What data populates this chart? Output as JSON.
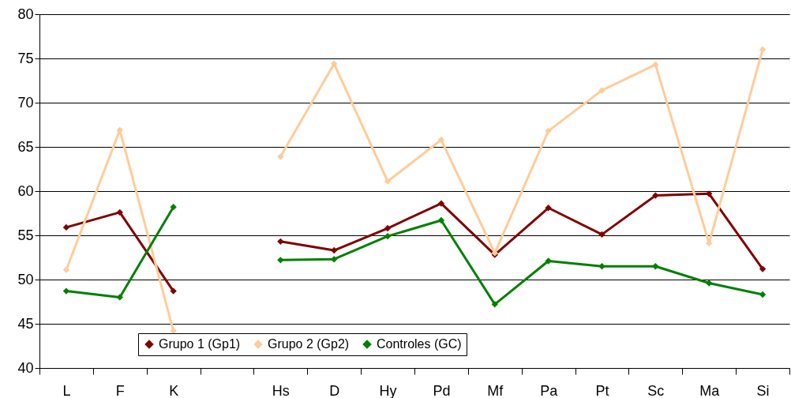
{
  "chart_data": {
    "type": "line",
    "categories": [
      "L",
      "F",
      "K",
      null,
      "Hs",
      "D",
      "Hy",
      "Pd",
      "Mf",
      "Pa",
      "Pt",
      "Sc",
      "Ma",
      "Si"
    ],
    "series": [
      {
        "name": "Grupo 1 (Gp1)",
        "color": "#800000",
        "values": [
          55.9,
          57.6,
          48.7,
          null,
          54.3,
          53.3,
          55.8,
          58.6,
          52.8,
          58.1,
          55.1,
          59.5,
          59.7,
          51.2
        ]
      },
      {
        "name": "Grupo 2 (Gp2)",
        "color": "#ffcc99",
        "values": [
          51.1,
          66.9,
          44.2,
          null,
          63.9,
          74.4,
          61.1,
          65.8,
          53.0,
          66.8,
          71.4,
          74.3,
          54.1,
          76.0
        ]
      },
      {
        "name": "Controles (GC)",
        "color": "#008000",
        "values": [
          48.7,
          48.0,
          58.2,
          null,
          52.2,
          52.3,
          54.9,
          56.7,
          47.2,
          52.1,
          51.5,
          51.5,
          49.6,
          48.3
        ]
      }
    ],
    "ylim": [
      40,
      80
    ],
    "yticks": [
      40,
      45,
      50,
      55,
      60,
      65,
      70,
      75,
      80
    ],
    "grid": "y",
    "legend": "bottom left",
    "marker": "diamond",
    "line_style": "solid"
  }
}
